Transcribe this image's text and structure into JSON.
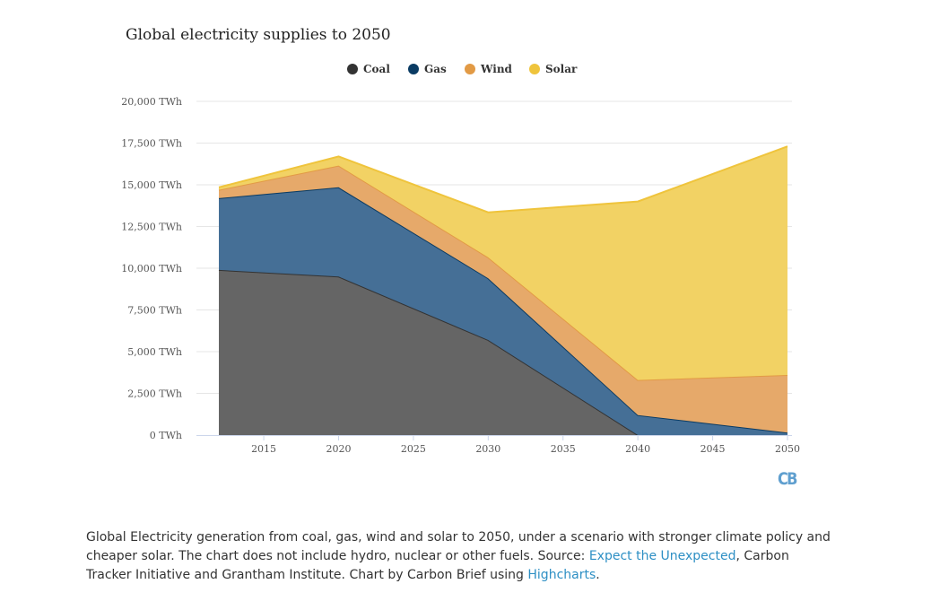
{
  "chart_data": {
    "type": "area",
    "stacked": true,
    "title": "Global electricity supplies to 2050",
    "x": [
      2012,
      2020,
      2030,
      2040,
      2050
    ],
    "xticks": [
      "2015",
      "2020",
      "2025",
      "2030",
      "2035",
      "2040",
      "2045",
      "2050"
    ],
    "ylim": [
      0,
      20000
    ],
    "yticks": [
      "0 TWh",
      "2,500 TWh",
      "5,000 TWh",
      "7,500 TWh",
      "10,000 TWh",
      "12,500 TWh",
      "15,000 TWh",
      "17,500 TWh",
      "20,000 TWh"
    ],
    "grid": true,
    "legend_position": "top-center",
    "series": [
      {
        "name": "Coal",
        "color": "#333333",
        "fill": "#656565",
        "values": [
          9900,
          9500,
          5700,
          0,
          0
        ]
      },
      {
        "name": "Gas",
        "color": "#0a3b63",
        "fill": "#456f96",
        "values": [
          4300,
          5350,
          3700,
          1200,
          150
        ]
      },
      {
        "name": "Wind",
        "color": "#e29a45",
        "fill": "#e6a96a",
        "values": [
          500,
          1300,
          1250,
          2100,
          3450
        ]
      },
      {
        "name": "Solar",
        "color": "#efc43c",
        "fill": "#f2d264",
        "values": [
          150,
          550,
          2700,
          10700,
          13700
        ]
      }
    ]
  },
  "logo": "CB",
  "caption": {
    "text1": "Global Electricity generation from coal, gas, wind and solar to 2050, under a scenario with stronger climate policy and cheaper solar. The chart does not include hydro, nuclear or other fuels. Source: ",
    "link1": "Expect the Unexpected",
    "text2": ", Carbon Tracker Initiative and Grantham Institute. Chart by Carbon Brief using ",
    "link2": "Highcharts",
    "text3": "."
  }
}
